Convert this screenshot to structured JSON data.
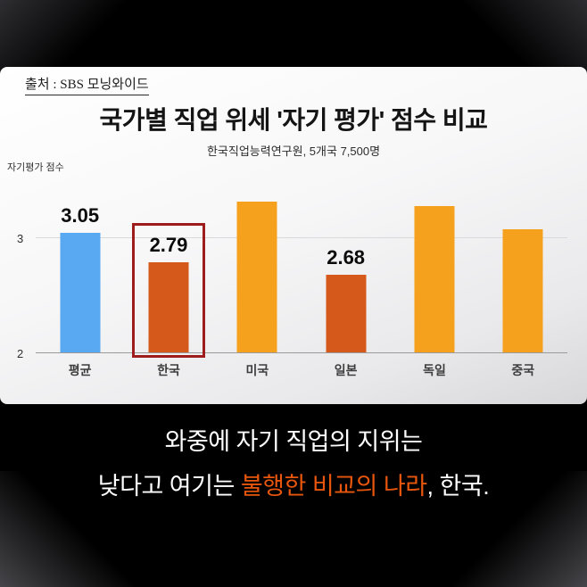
{
  "source": {
    "label": "출처 : SBS 모닝와이드"
  },
  "chart": {
    "title": "국가별 직업 위세 '자기 평가' 점수 비교",
    "subtitle": "한국직업능력연구원, 5개국 7,500명",
    "ylabel": "자기평가 점수",
    "yticks": [
      "3",
      "2"
    ]
  },
  "chart_data": {
    "type": "bar",
    "title": "국가별 직업 위세 '자기 평가' 점수 비교",
    "subtitle": "한국직업능력연구원, 5개국 7,500명",
    "ylabel": "자기평가 점수",
    "ylim": [
      2,
      3.5
    ],
    "grid": "single line at y=3",
    "categories": [
      "평균",
      "한국",
      "미국",
      "일본",
      "독일",
      "중국"
    ],
    "values": [
      3.05,
      2.79,
      3.32,
      2.68,
      3.28,
      3.08
    ],
    "data_labels": [
      "3.05",
      "2.79",
      "",
      "2.68",
      "",
      ""
    ],
    "colors": [
      "#58a8f2",
      "#d4591a",
      "#f6a11e",
      "#d4591a",
      "#f6a11e",
      "#f6a11e"
    ],
    "highlighted_category": "한국",
    "highlight_box_color": "#9e1c1c"
  },
  "caption": {
    "line1": "와중에 자기 직업의 지위는",
    "line2_pre": "낮다고 여기는 ",
    "line2_highlight": "불행한 비교의 나라",
    "line2_post": ", 한국.",
    "highlight_color": "#e8560e"
  }
}
